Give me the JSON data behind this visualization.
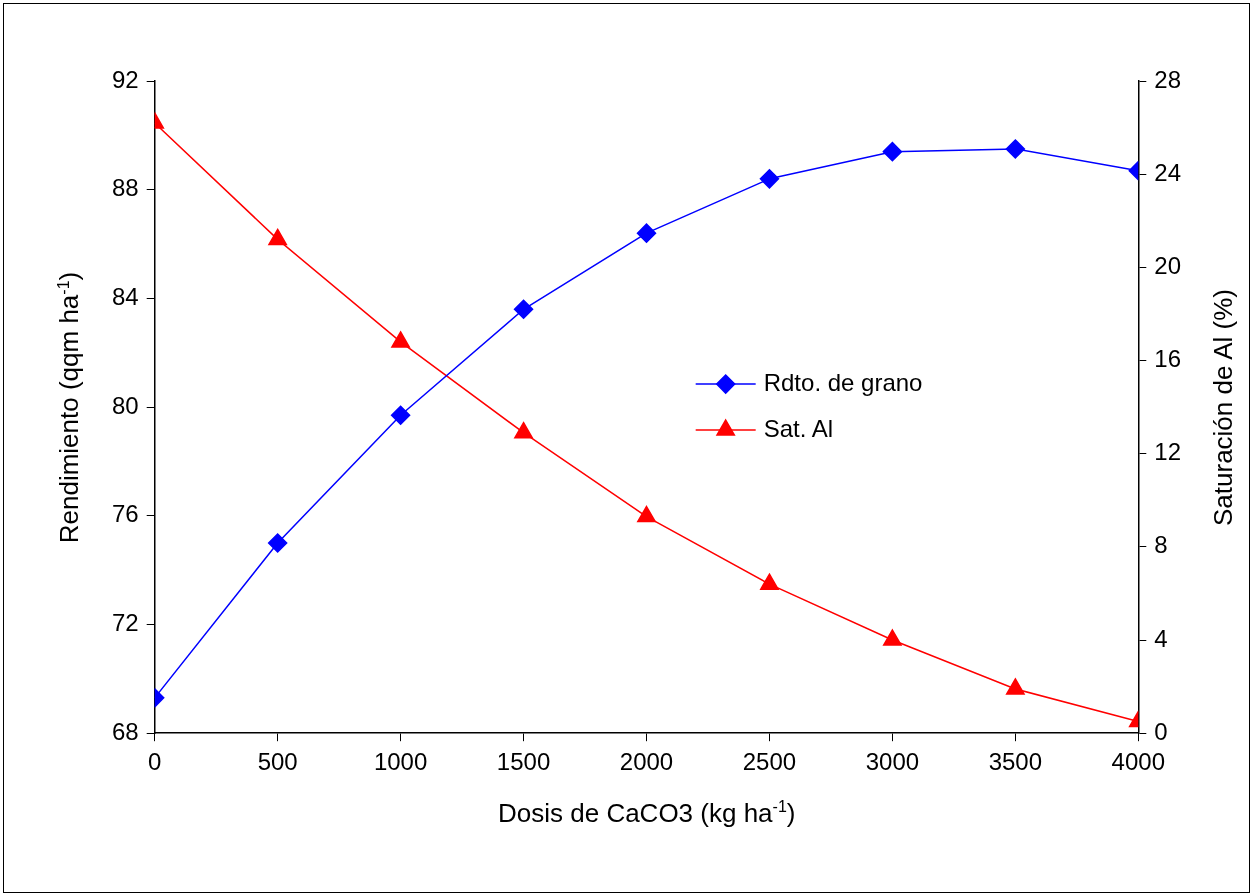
{
  "chart_data": {
    "type": "line",
    "xlabel": "Dosis de CaCO3  (kg ha$^{-1}$)",
    "ylabel": "Rendimiento  (qqm ha$^{-1}$)",
    "y2label": "Saturación de Al  (%)",
    "x": [
      0,
      500,
      1000,
      1500,
      2000,
      2500,
      3000,
      3500,
      4000
    ],
    "xlim": [
      0,
      4000
    ],
    "xticks": [
      0,
      500,
      1000,
      1500,
      2000,
      2500,
      3000,
      3500,
      4000
    ],
    "ylim": [
      68,
      92
    ],
    "yticks": [
      68,
      72,
      76,
      80,
      84,
      88,
      92
    ],
    "y2lim": [
      0,
      28
    ],
    "y2ticks": [
      0,
      4,
      8,
      12,
      16,
      20,
      24,
      28
    ],
    "series": [
      {
        "name": "Rdto. de grano",
        "color": "#0000ff",
        "marker": "diamond",
        "values": [
          69.3,
          75.0,
          79.7,
          83.6,
          86.4,
          88.4,
          89.4,
          89.5,
          88.7
        ]
      },
      {
        "name": "Sat. Al",
        "color": "#ff0000",
        "marker": "triangle",
        "axis": "y2",
        "values": [
          26.2,
          21.2,
          16.8,
          12.9,
          9.3,
          6.4,
          4.0,
          1.9,
          0.5
        ]
      }
    ],
    "grid": false,
    "legend": "right",
    "line_style": "solid"
  }
}
